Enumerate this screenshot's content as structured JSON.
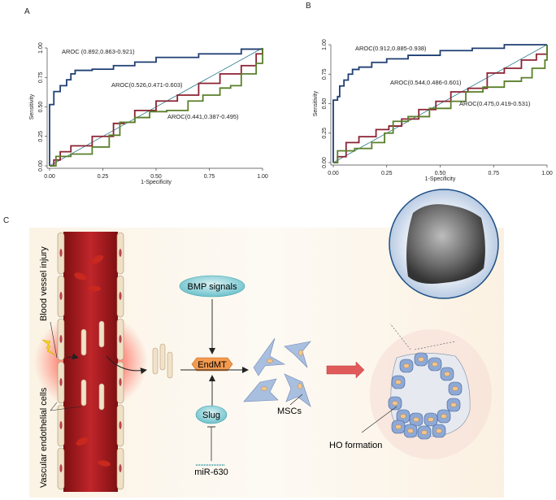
{
  "panel_labels": {
    "a": "A",
    "b": "B",
    "c": "C"
  },
  "chart_data": [
    {
      "type": "line",
      "panel": "A",
      "xlabel": "1-Specificity",
      "ylabel": "Sensitivity",
      "xlim": [
        0,
        1
      ],
      "ylim": [
        0,
        1
      ],
      "xticks": [
        "0.00",
        "0.25",
        "0.50",
        "0.75",
        "1.00"
      ],
      "yticks": [
        "0.00",
        "0.25",
        "0.50",
        "0.75",
        "1.00"
      ],
      "grid": false,
      "reference_line": {
        "x": [
          0,
          1
        ],
        "y": [
          0,
          1
        ],
        "color": "#2a7a8c"
      },
      "series": [
        {
          "name": "AROC (0.892,0.863-0.921)",
          "color": "#1f3f73",
          "x": [
            0,
            0,
            0.02,
            0.02,
            0.05,
            0.08,
            0.1,
            0.12,
            0.2,
            0.3,
            0.4,
            0.5,
            0.7,
            0.9,
            1
          ],
          "y": [
            0,
            0.52,
            0.55,
            0.63,
            0.68,
            0.73,
            0.78,
            0.81,
            0.82,
            0.85,
            0.88,
            0.92,
            0.95,
            0.99,
            1
          ]
        },
        {
          "name": "AROC(0.526,0.471-0.603)",
          "color": "#8c2232",
          "x": [
            0,
            0.02,
            0.05,
            0.1,
            0.2,
            0.3,
            0.35,
            0.4,
            0.5,
            0.6,
            0.7,
            0.8,
            0.9,
            0.97,
            1
          ],
          "y": [
            0,
            0.05,
            0.12,
            0.17,
            0.25,
            0.36,
            0.37,
            0.47,
            0.55,
            0.6,
            0.7,
            0.78,
            0.85,
            0.95,
            1
          ]
        },
        {
          "name": "AROC(0.441,0.387-0.495)",
          "color": "#5a7f2a",
          "x": [
            0,
            0.03,
            0.1,
            0.2,
            0.28,
            0.33,
            0.4,
            0.47,
            0.55,
            0.65,
            0.72,
            0.8,
            0.85,
            0.9,
            0.97,
            1
          ],
          "y": [
            0,
            0.08,
            0.1,
            0.16,
            0.26,
            0.37,
            0.41,
            0.46,
            0.47,
            0.55,
            0.6,
            0.66,
            0.68,
            0.78,
            0.87,
            1
          ]
        }
      ]
    },
    {
      "type": "line",
      "panel": "B",
      "xlabel": "1-Specificity",
      "ylabel": "Sensitivity",
      "xlim": [
        0,
        1
      ],
      "ylim": [
        0,
        1
      ],
      "xticks": [
        "0.00",
        "0.25",
        "0.50",
        "0.75",
        "1.00"
      ],
      "yticks": [
        "0.00",
        "0.25",
        "0.50",
        "0.75",
        "1.00"
      ],
      "grid": false,
      "reference_line": {
        "x": [
          0,
          1
        ],
        "y": [
          0,
          1
        ],
        "color": "#2a7a8c"
      },
      "series": [
        {
          "name": "AROC(0.912,0.885-0.938)",
          "color": "#1f3f73",
          "x": [
            0,
            0,
            0.02,
            0.03,
            0.05,
            0.07,
            0.09,
            0.12,
            0.18,
            0.25,
            0.35,
            0.5,
            0.65,
            0.8,
            1
          ],
          "y": [
            0,
            0.53,
            0.56,
            0.65,
            0.7,
            0.75,
            0.79,
            0.81,
            0.85,
            0.88,
            0.91,
            0.95,
            0.97,
            1,
            1
          ]
        },
        {
          "name": "AROC(0.544,0.486-0.601)",
          "color": "#8c2232",
          "x": [
            0,
            0.02,
            0.06,
            0.12,
            0.2,
            0.26,
            0.32,
            0.4,
            0.48,
            0.55,
            0.63,
            0.72,
            0.8,
            0.88,
            0.95,
            1
          ],
          "y": [
            0,
            0.05,
            0.17,
            0.22,
            0.28,
            0.31,
            0.37,
            0.45,
            0.52,
            0.6,
            0.63,
            0.76,
            0.8,
            0.87,
            0.92,
            1
          ]
        },
        {
          "name": "AROC(0.475,0.419-0.531)",
          "color": "#5a7f2a",
          "x": [
            0,
            0.02,
            0.1,
            0.18,
            0.24,
            0.28,
            0.35,
            0.45,
            0.55,
            0.62,
            0.7,
            0.8,
            0.88,
            0.93,
            0.99,
            1
          ],
          "y": [
            0,
            0.1,
            0.12,
            0.17,
            0.25,
            0.35,
            0.39,
            0.46,
            0.52,
            0.6,
            0.64,
            0.69,
            0.72,
            0.8,
            0.87,
            1
          ]
        }
      ]
    }
  ],
  "diagram": {
    "blood_vessel_injury": "Blood vessel injury",
    "vascular_endothelial_cells": "Vascular endothelial cells",
    "bmp_signals": "BMP signals",
    "endmt": "EndMT",
    "slug": "Slug",
    "mir": "miR-630",
    "mscs": "MSCs",
    "ho_formation": "HO formation"
  }
}
